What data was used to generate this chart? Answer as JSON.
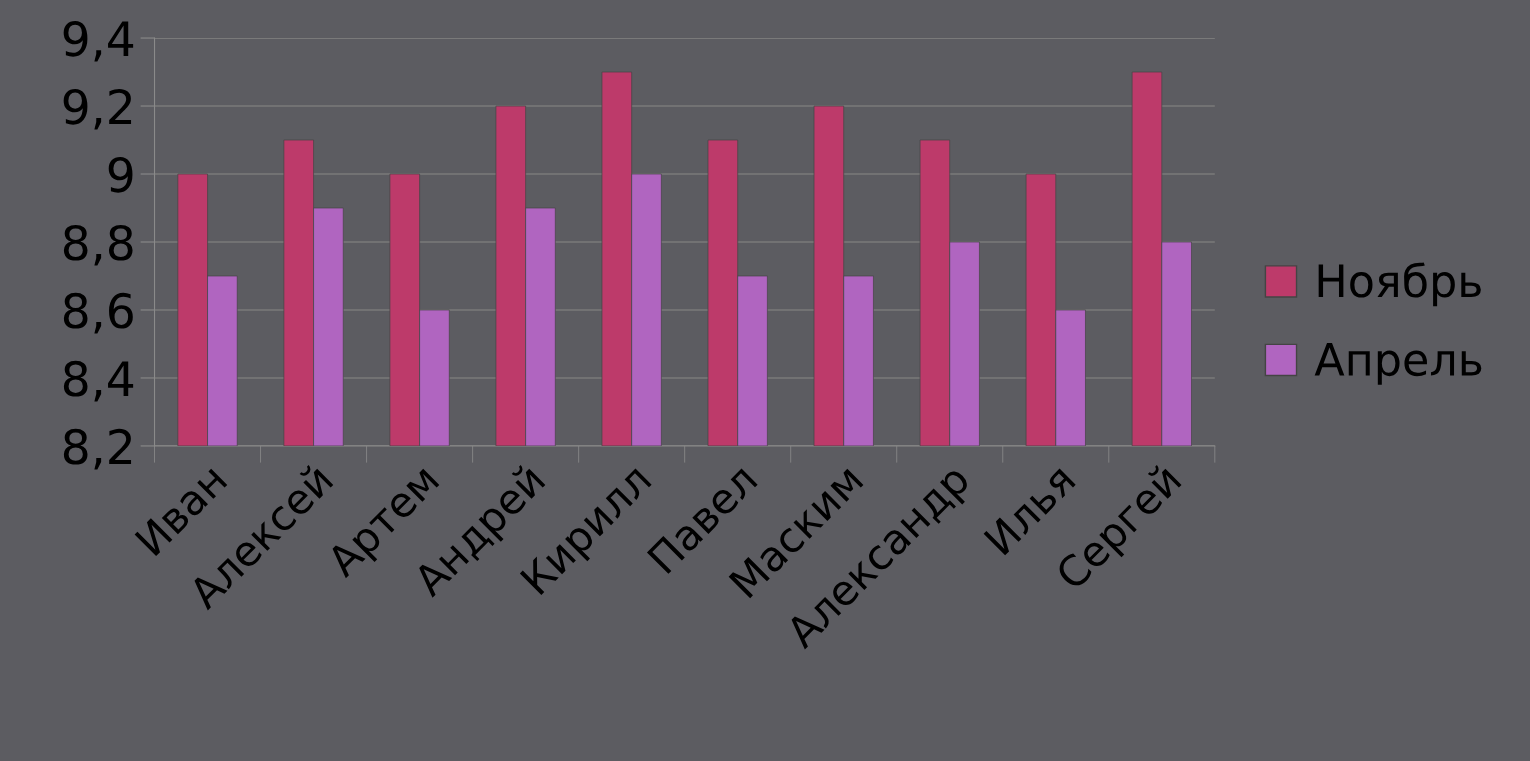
{
  "chart_data": {
    "type": "bar",
    "categories": [
      "Иван",
      "Алексей",
      "Артем",
      "Андрей",
      "Кирилл",
      "Павел",
      "Маским",
      "Александр",
      "Илья",
      "Сергей"
    ],
    "series": [
      {
        "name": "Ноябрь",
        "color": "#bd3a6a",
        "values": [
          9.0,
          9.1,
          9.0,
          9.2,
          9.3,
          9.1,
          9.2,
          9.1,
          9.0,
          9.3
        ]
      },
      {
        "name": "Апрель",
        "color": "#b065c0",
        "values": [
          8.7,
          8.9,
          8.6,
          8.9,
          9.0,
          8.7,
          8.7,
          8.8,
          8.6,
          8.8
        ]
      }
    ],
    "ylim": [
      8.2,
      9.4
    ],
    "yticks": [
      {
        "value": 8.2,
        "label": "8,2"
      },
      {
        "value": 8.4,
        "label": "8,4"
      },
      {
        "value": 8.6,
        "label": "8,6"
      },
      {
        "value": 8.8,
        "label": "8,8"
      },
      {
        "value": 9.0,
        "label": "9"
      },
      {
        "value": 9.2,
        "label": "9,2"
      },
      {
        "value": 9.4,
        "label": "9,4"
      }
    ],
    "grid": "y",
    "legend": "right"
  }
}
